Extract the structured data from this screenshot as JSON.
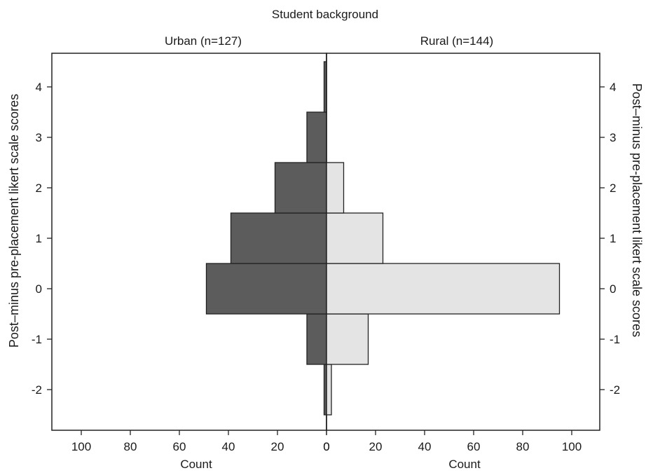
{
  "chart_data": {
    "type": "bar",
    "orientation": "horizontal",
    "layout": "back-to-back population pyramid",
    "title": "Student background",
    "y_label_left": "Post–minus pre-placement likert scale scores",
    "y_label_right": "Post–minus pre-placement likert scale scores",
    "x_label_left": "Count",
    "x_label_right": "Count",
    "y_ticks": [
      -2,
      -1,
      0,
      1,
      2,
      3,
      4
    ],
    "y_tick_labels": [
      "-2",
      "-1",
      "0",
      "1",
      "2",
      "3",
      "4"
    ],
    "x_ticks": [
      100,
      80,
      60,
      40,
      20,
      0
    ],
    "x_tick_labels_left": [
      "100",
      "80",
      "60",
      "40",
      "20",
      "0"
    ],
    "x_tick_labels_right": [
      "0",
      "20",
      "40",
      "60",
      "80",
      "100"
    ],
    "xlim": [
      0,
      110
    ],
    "ylim": [
      -2.9,
      4.85
    ],
    "grid": false,
    "categories": [
      -2,
      -1,
      0,
      1,
      2,
      3,
      4
    ],
    "series": [
      {
        "name": "Urban (n=127)",
        "side": "left",
        "color": "#5c5c5c",
        "values": [
          1,
          8,
          49,
          39,
          21,
          8,
          1
        ]
      },
      {
        "name": "Rural (n=144)",
        "side": "right",
        "color": "#e4e4e4",
        "values": [
          2,
          17,
          95,
          23,
          7,
          0,
          0
        ]
      }
    ]
  }
}
